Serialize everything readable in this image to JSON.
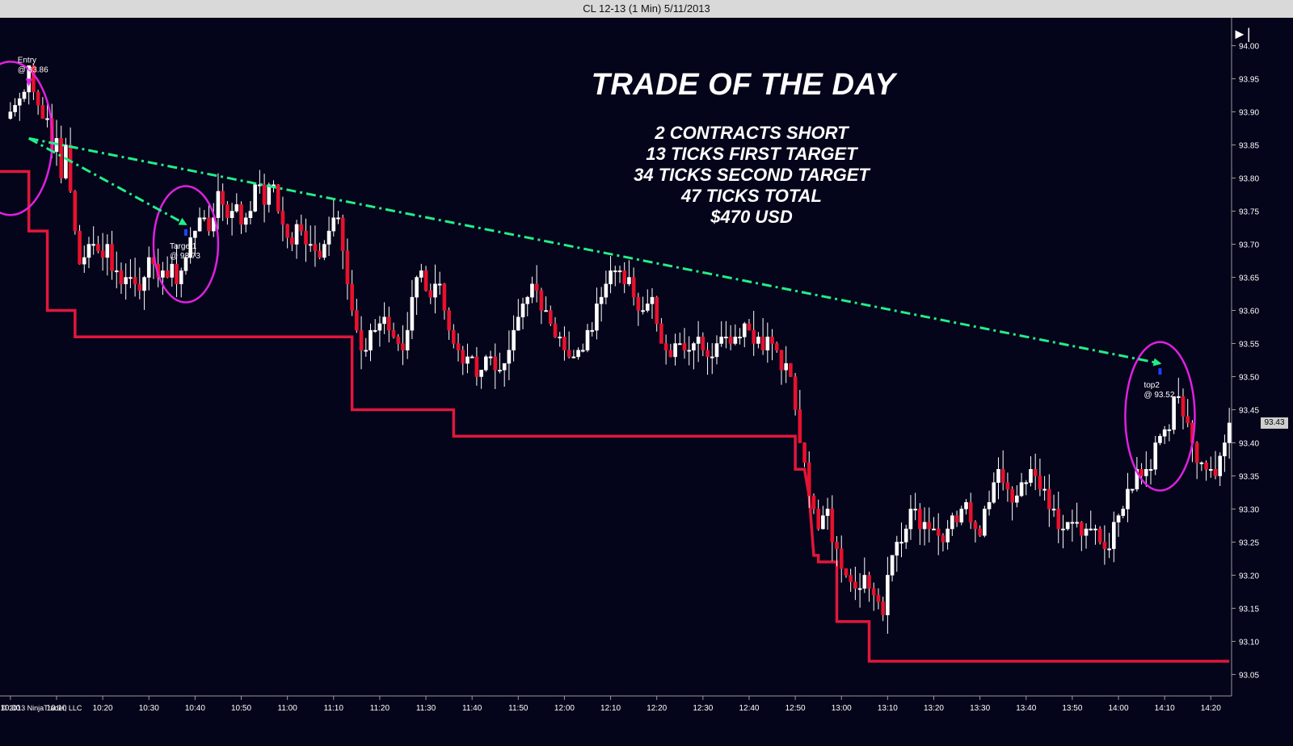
{
  "window": {
    "title": "CL 12-13 (1 Min)  5/11/2013"
  },
  "overlay": {
    "title": "TRADE OF THE DAY",
    "lines": [
      "2 CONTRACTS SHORT",
      "13 TICKS FIRST TARGET",
      "34 TICKS SECOND TARGET",
      "47 TICKS TOTAL",
      "$470 USD"
    ]
  },
  "copyright": "© 2013 NinjaTrader, LLC",
  "last_price_label": "93.43",
  "icons": {
    "play_end": "skip-to-end-icon"
  },
  "colors": {
    "background": "#04041a",
    "up_candle": "#ffffff",
    "down_candle": "#e8112d",
    "stop_line": "#e0173c",
    "arrow": "#22ee88",
    "circle": "#e020e0"
  },
  "chart_data": {
    "type": "candlestick",
    "title": "CL 12-13 (1 Min)  5/11/2013",
    "x_ticks": [
      "10:00",
      "10:10",
      "10:20",
      "10:30",
      "10:40",
      "10:50",
      "11:00",
      "11:10",
      "11:20",
      "11:30",
      "11:40",
      "11:50",
      "12:00",
      "12:10",
      "12:20",
      "12:30",
      "12:40",
      "12:50",
      "13:00",
      "13:10",
      "13:20",
      "13:30",
      "13:40",
      "13:50",
      "14:00",
      "14:10",
      "14:20"
    ],
    "y_ticks": [
      "94.00",
      "93.95",
      "93.90",
      "93.85",
      "93.80",
      "93.75",
      "93.70",
      "93.65",
      "93.60",
      "93.55",
      "93.50",
      "93.45",
      "93.40",
      "93.35",
      "93.30",
      "93.25",
      "93.20",
      "93.15",
      "93.10",
      "93.05"
    ],
    "ylim": [
      93.02,
      94.03
    ],
    "xlim_minutes": [
      -0.5,
      264.5
    ],
    "close_anchors": [
      [
        0,
        93.9
      ],
      [
        3,
        93.93
      ],
      [
        4,
        93.97
      ],
      [
        6,
        93.91
      ],
      [
        8,
        93.89
      ],
      [
        9,
        93.84
      ],
      [
        10,
        93.86
      ],
      [
        11,
        93.8
      ],
      [
        12,
        93.85
      ],
      [
        13,
        93.78
      ],
      [
        14,
        93.72
      ],
      [
        15,
        93.67
      ],
      [
        17,
        93.7
      ],
      [
        19,
        93.69
      ],
      [
        21,
        93.7
      ],
      [
        22,
        93.66
      ],
      [
        24,
        93.64
      ],
      [
        26,
        93.65
      ],
      [
        28,
        93.63
      ],
      [
        30,
        93.68
      ],
      [
        32,
        93.65
      ],
      [
        35,
        93.67
      ],
      [
        36,
        93.64
      ],
      [
        37,
        93.66
      ],
      [
        39,
        93.71
      ],
      [
        41,
        93.74
      ],
      [
        43,
        93.72
      ],
      [
        45,
        93.78
      ],
      [
        47,
        93.74
      ],
      [
        49,
        93.76
      ],
      [
        50,
        93.73
      ],
      [
        53,
        93.79
      ],
      [
        55,
        93.76
      ],
      [
        57,
        93.79
      ],
      [
        59,
        93.73
      ],
      [
        61,
        93.7
      ],
      [
        63,
        93.72
      ],
      [
        65,
        93.7
      ],
      [
        67,
        93.68
      ],
      [
        69,
        93.72
      ],
      [
        71,
        93.74
      ],
      [
        72,
        93.69
      ],
      [
        73,
        93.64
      ],
      [
        75,
        93.57
      ],
      [
        77,
        93.54
      ],
      [
        79,
        93.57
      ],
      [
        81,
        93.59
      ],
      [
        83,
        93.56
      ],
      [
        85,
        93.54
      ],
      [
        87,
        93.62
      ],
      [
        88,
        93.65
      ],
      [
        89,
        93.66
      ],
      [
        91,
        93.62
      ],
      [
        93,
        93.64
      ],
      [
        95,
        93.57
      ],
      [
        97,
        93.54
      ],
      [
        99,
        93.53
      ],
      [
        101,
        93.5
      ],
      [
        103,
        93.53
      ],
      [
        105,
        93.51
      ],
      [
        107,
        93.52
      ],
      [
        109,
        93.57
      ],
      [
        111,
        93.61
      ],
      [
        113,
        93.64
      ],
      [
        115,
        93.6
      ],
      [
        117,
        93.58
      ],
      [
        119,
        93.56
      ],
      [
        121,
        93.53
      ],
      [
        123,
        93.54
      ],
      [
        125,
        93.57
      ],
      [
        127,
        93.61
      ],
      [
        129,
        93.64
      ],
      [
        131,
        93.66
      ],
      [
        133,
        93.64
      ],
      [
        135,
        93.62
      ],
      [
        137,
        93.6
      ],
      [
        139,
        93.62
      ],
      [
        141,
        93.55
      ],
      [
        143,
        93.53
      ],
      [
        145,
        93.55
      ],
      [
        147,
        93.54
      ],
      [
        149,
        93.56
      ],
      [
        151,
        93.53
      ],
      [
        153,
        93.55
      ],
      [
        155,
        93.56
      ],
      [
        157,
        93.56
      ],
      [
        159,
        93.58
      ],
      [
        161,
        93.55
      ],
      [
        163,
        93.54
      ],
      [
        165,
        93.55
      ],
      [
        167,
        93.51
      ],
      [
        169,
        93.5
      ],
      [
        170,
        93.45
      ],
      [
        171,
        93.4
      ],
      [
        173,
        93.32
      ],
      [
        175,
        93.27
      ],
      [
        177,
        93.3
      ],
      [
        179,
        93.24
      ],
      [
        181,
        93.2
      ],
      [
        183,
        93.18
      ],
      [
        185,
        93.2
      ],
      [
        187,
        93.17
      ],
      [
        189,
        93.14
      ],
      [
        190,
        93.2
      ],
      [
        192,
        93.25
      ],
      [
        194,
        93.27
      ],
      [
        196,
        93.3
      ],
      [
        198,
        93.28
      ],
      [
        200,
        93.27
      ],
      [
        202,
        93.25
      ],
      [
        204,
        93.29
      ],
      [
        206,
        93.3
      ],
      [
        208,
        93.28
      ],
      [
        210,
        93.26
      ],
      [
        212,
        93.31
      ],
      [
        214,
        93.36
      ],
      [
        216,
        93.33
      ],
      [
        218,
        93.32
      ],
      [
        220,
        93.34
      ],
      [
        222,
        93.35
      ],
      [
        224,
        93.33
      ],
      [
        226,
        93.3
      ],
      [
        228,
        93.27
      ],
      [
        230,
        93.28
      ],
      [
        232,
        93.26
      ],
      [
        234,
        93.27
      ],
      [
        236,
        93.25
      ],
      [
        238,
        93.24
      ],
      [
        240,
        93.29
      ],
      [
        242,
        93.33
      ],
      [
        244,
        93.36
      ],
      [
        246,
        93.36
      ],
      [
        248,
        93.4
      ],
      [
        250,
        93.42
      ],
      [
        251,
        93.42
      ],
      [
        252,
        93.47
      ],
      [
        254,
        93.44
      ],
      [
        256,
        93.4
      ],
      [
        258,
        93.37
      ],
      [
        260,
        93.36
      ],
      [
        262,
        93.38
      ],
      [
        264,
        93.43
      ]
    ],
    "stop_line": [
      [
        -3,
        93.81
      ],
      [
        4,
        93.81
      ],
      [
        4,
        93.72
      ],
      [
        8,
        93.72
      ],
      [
        8,
        93.6
      ],
      [
        14,
        93.6
      ],
      [
        14,
        93.56
      ],
      [
        37,
        93.56
      ],
      [
        50,
        93.56
      ],
      [
        74,
        93.56
      ],
      [
        74,
        93.45
      ],
      [
        96,
        93.45
      ],
      [
        96,
        93.41
      ],
      [
        168,
        93.41
      ],
      [
        170,
        93.41
      ],
      [
        170,
        93.36
      ],
      [
        172,
        93.36
      ],
      [
        173,
        93.32
      ],
      [
        174,
        93.23
      ],
      [
        175,
        93.23
      ],
      [
        175,
        93.22
      ],
      [
        179,
        93.22
      ],
      [
        179,
        93.13
      ],
      [
        186,
        93.13
      ],
      [
        186,
        93.07
      ],
      [
        264,
        93.07
      ]
    ],
    "annotations": [
      {
        "text_top": "Entry",
        "text_bottom": "@ 93.86",
        "time": 4,
        "price": 93.86
      },
      {
        "text_top": "Target1",
        "text_bottom": "@ 93.73",
        "time": 38,
        "price": 93.73
      },
      {
        "text_top": "top2",
        "text_bottom": "@ 93.52",
        "time": 249,
        "price": 93.52
      }
    ],
    "arrows": [
      {
        "from": [
          4,
          93.86
        ],
        "to": [
          38,
          93.73
        ]
      },
      {
        "from": [
          4,
          93.86
        ],
        "to": [
          249,
          93.52
        ]
      }
    ],
    "last_price": 93.43
  }
}
